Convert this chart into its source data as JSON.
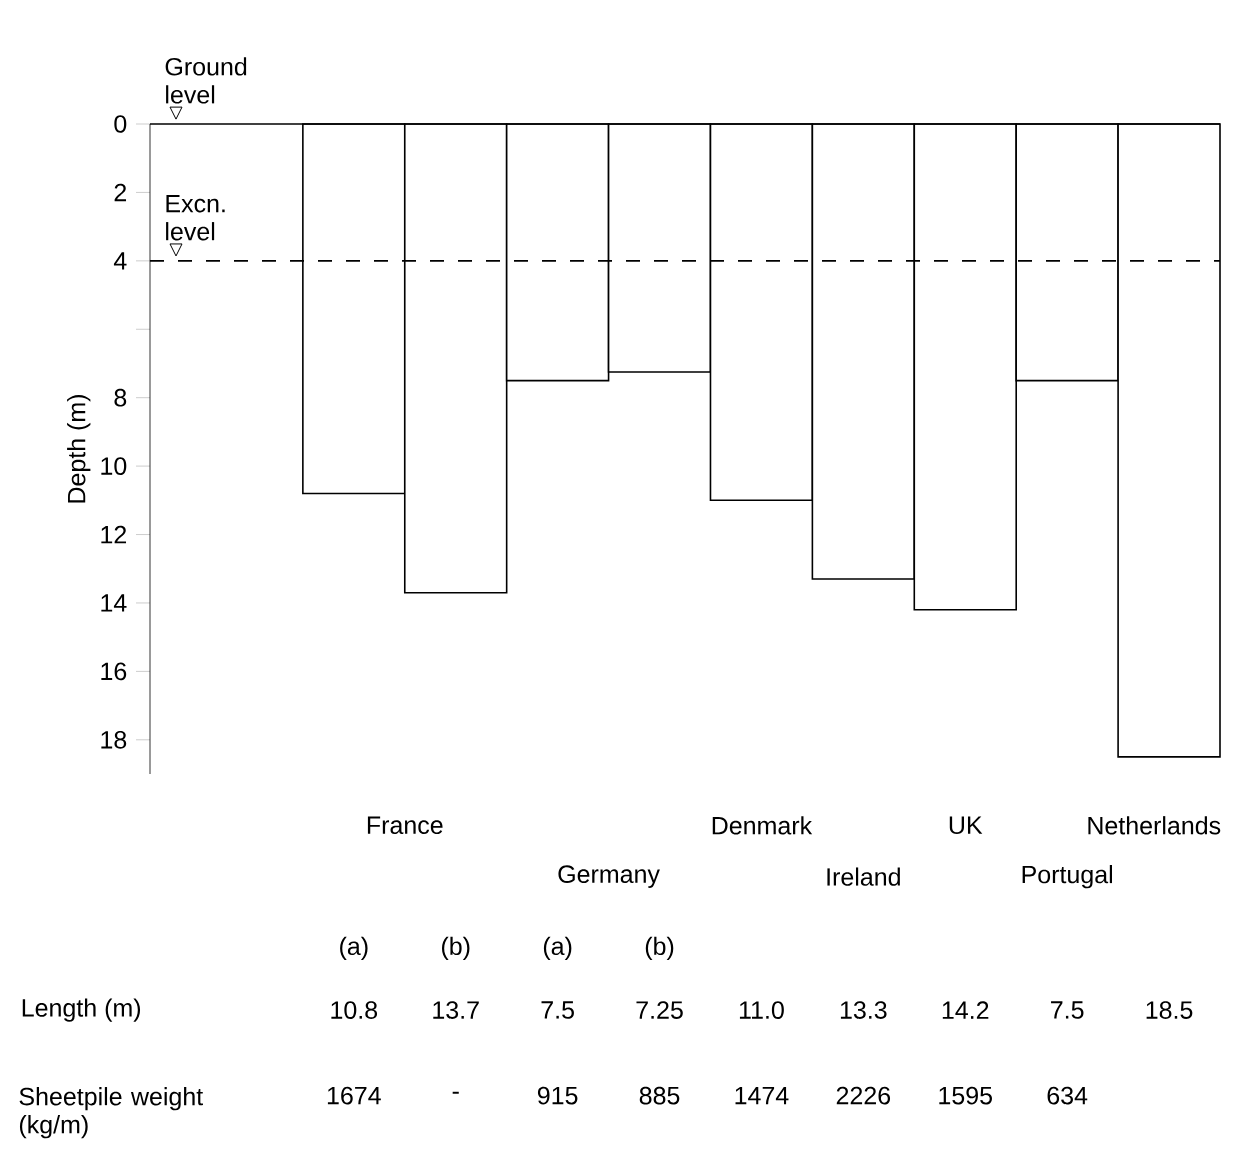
{
  "chart_data": {
    "type": "bar",
    "ylabel": "Depth (m)",
    "categories": [
      null,
      "(a)",
      "(b)",
      "(a)",
      "(b)",
      null,
      null,
      null,
      null,
      null
    ],
    "values": [
      null,
      10.8,
      13.7,
      7.5,
      7.25,
      11.0,
      13.3,
      14.2,
      7.5,
      18.5
    ],
    "value_labels": [
      null,
      "10.8",
      "13.7",
      "7.5",
      "7.25",
      "11.0",
      "13.3",
      "14.2",
      "7.5",
      "18.5"
    ],
    "color": "#ffffff",
    "ylim": [
      19,
      0
    ],
    "yticks": [
      0,
      2,
      4,
      {
        "value": 6,
        "label": null
      },
      8,
      10,
      12,
      14,
      16,
      18
    ],
    "ref_lines": [
      {
        "axis": "y",
        "value": 0,
        "label": "Ground level",
        "line_style": "solid"
      },
      {
        "axis": "y",
        "value": 4,
        "label": "Excn. level",
        "line_style": "dashed"
      }
    ],
    "annotations": [
      "France",
      "Germany",
      "Denmark",
      "Ireland",
      "UK",
      "Portugal",
      "Netherlands",
      "Length (m)",
      "Sheetpile weight (kg/m)",
      "1674",
      "-",
      "915",
      "885",
      "1474",
      "2226",
      "1595",
      "634"
    ]
  }
}
